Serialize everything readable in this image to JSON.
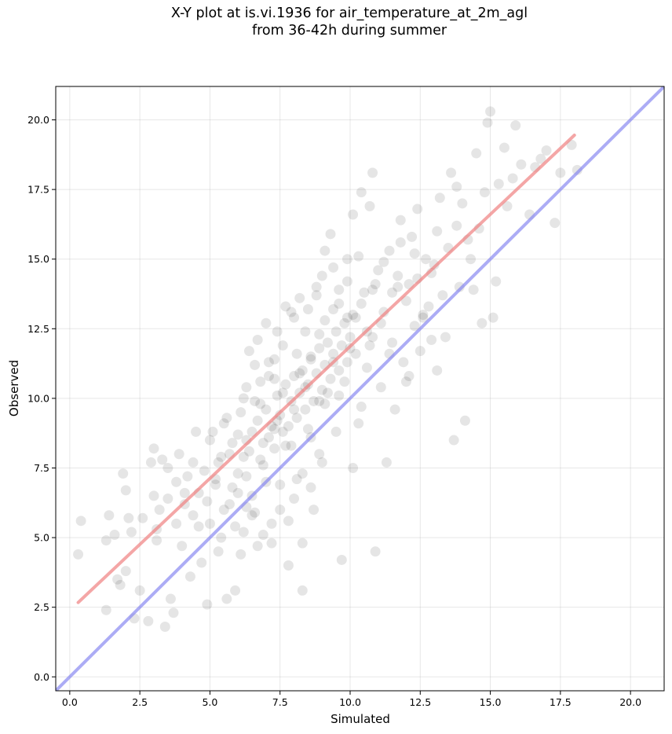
{
  "chart_data": {
    "type": "scatter",
    "title_line1": "X-Y plot at is.vi.1936 for air_temperature_at_2m_agl",
    "title_line2": "from 36-42h during summer",
    "xlabel": "Simulated",
    "ylabel": "Observed",
    "xlim": [
      -0.5,
      21.2
    ],
    "ylim": [
      -0.5,
      21.2
    ],
    "xticks": [
      0.0,
      2.5,
      5.0,
      7.5,
      10.0,
      12.5,
      15.0,
      17.5,
      20.0
    ],
    "yticks": [
      0.0,
      2.5,
      5.0,
      7.5,
      10.0,
      12.5,
      15.0,
      17.5,
      20.0
    ],
    "xtick_labels": [
      "0.0",
      "2.5",
      "5.0",
      "7.5",
      "10.0",
      "12.5",
      "15.0",
      "17.5",
      "20.0"
    ],
    "ytick_labels": [
      "0.0",
      "2.5",
      "5.0",
      "7.5",
      "10.0",
      "12.5",
      "15.0",
      "17.5",
      "20.0"
    ],
    "grid": true,
    "point_color": "#000000",
    "point_alpha": 0.1,
    "series": [
      {
        "name": "",
        "points": [
          [
            0.3,
            4.4
          ],
          [
            0.4,
            5.6
          ],
          [
            1.3,
            2.4
          ],
          [
            1.3,
            4.9
          ],
          [
            1.4,
            5.8
          ],
          [
            1.6,
            5.1
          ],
          [
            1.7,
            3.5
          ],
          [
            1.8,
            3.3
          ],
          [
            1.9,
            7.3
          ],
          [
            2.0,
            3.8
          ],
          [
            2.0,
            6.7
          ],
          [
            2.1,
            5.7
          ],
          [
            2.2,
            5.2
          ],
          [
            2.3,
            2.1
          ],
          [
            2.5,
            3.1
          ],
          [
            2.6,
            5.7
          ],
          [
            2.8,
            2.0
          ],
          [
            2.9,
            7.7
          ],
          [
            3.0,
            8.2
          ],
          [
            3.0,
            6.5
          ],
          [
            3.1,
            4.9
          ],
          [
            3.1,
            5.3
          ],
          [
            3.3,
            7.8
          ],
          [
            3.4,
            1.8
          ],
          [
            3.5,
            7.5
          ],
          [
            3.6,
            2.8
          ],
          [
            3.7,
            2.3
          ],
          [
            3.8,
            5.5
          ],
          [
            3.9,
            8.0
          ],
          [
            4.0,
            4.7
          ],
          [
            4.1,
            6.2
          ],
          [
            4.2,
            7.2
          ],
          [
            4.3,
            3.6
          ],
          [
            4.4,
            5.8
          ],
          [
            4.5,
            8.8
          ],
          [
            4.6,
            6.6
          ],
          [
            4.7,
            4.1
          ],
          [
            4.8,
            7.4
          ],
          [
            4.9,
            2.6
          ],
          [
            5.0,
            5.5
          ],
          [
            5.1,
            8.8
          ],
          [
            5.2,
            6.9
          ],
          [
            5.3,
            4.5
          ],
          [
            5.4,
            7.9
          ],
          [
            5.5,
            9.1
          ],
          [
            5.6,
            2.8
          ],
          [
            5.7,
            6.2
          ],
          [
            5.8,
            8.4
          ],
          [
            5.9,
            3.1
          ],
          [
            6.0,
            7.3
          ],
          [
            6.1,
            9.5
          ],
          [
            6.2,
            5.2
          ],
          [
            6.3,
            10.4
          ],
          [
            6.4,
            8.1
          ],
          [
            6.5,
            6.5
          ],
          [
            6.6,
            11.2
          ],
          [
            6.7,
            4.7
          ],
          [
            6.8,
            9.8
          ],
          [
            6.9,
            7.6
          ],
          [
            7.0,
            12.7
          ],
          [
            7.1,
            8.6
          ],
          [
            7.2,
            5.5
          ],
          [
            7.3,
            10.7
          ],
          [
            7.4,
            9.2
          ],
          [
            7.5,
            6.9
          ],
          [
            7.6,
            11.9
          ],
          [
            7.7,
            8.3
          ],
          [
            7.8,
            4.0
          ],
          [
            7.9,
            13.1
          ],
          [
            8.0,
            9.6
          ],
          [
            8.1,
            7.1
          ],
          [
            8.2,
            10.9
          ],
          [
            8.3,
            3.1
          ],
          [
            8.4,
            12.4
          ],
          [
            8.5,
            8.9
          ],
          [
            8.6,
            11.5
          ],
          [
            8.7,
            6.0
          ],
          [
            8.8,
            13.7
          ],
          [
            8.9,
            9.9
          ],
          [
            9.0,
            7.7
          ],
          [
            9.1,
            12.8
          ],
          [
            9.2,
            10.2
          ],
          [
            9.3,
            15.9
          ],
          [
            9.4,
            11.3
          ],
          [
            9.5,
            8.8
          ],
          [
            9.6,
            13.4
          ],
          [
            9.7,
            4.2
          ],
          [
            9.8,
            10.6
          ],
          [
            9.9,
            14.2
          ],
          [
            10.0,
            11.8
          ],
          [
            10.1,
            7.5
          ],
          [
            10.2,
            12.9
          ],
          [
            10.3,
            15.1
          ],
          [
            10.4,
            9.7
          ],
          [
            10.5,
            13.8
          ],
          [
            10.6,
            11.1
          ],
          [
            10.7,
            16.9
          ],
          [
            10.8,
            12.2
          ],
          [
            10.9,
            4.5
          ],
          [
            11.0,
            14.6
          ],
          [
            11.1,
            10.4
          ],
          [
            11.2,
            13.1
          ],
          [
            11.3,
            7.7
          ],
          [
            11.4,
            15.3
          ],
          [
            11.5,
            12.0
          ],
          [
            11.6,
            9.6
          ],
          [
            11.7,
            14.0
          ],
          [
            11.8,
            16.4
          ],
          [
            11.9,
            11.3
          ],
          [
            12.0,
            13.5
          ],
          [
            12.1,
            10.8
          ],
          [
            12.2,
            15.8
          ],
          [
            12.3,
            12.6
          ],
          [
            12.4,
            14.3
          ],
          [
            12.5,
            11.7
          ],
          [
            12.6,
            13.0
          ],
          [
            12.7,
            15.0
          ],
          [
            12.9,
            12.1
          ],
          [
            13.0,
            14.8
          ],
          [
            13.1,
            11.0
          ],
          [
            13.2,
            17.2
          ],
          [
            13.3,
            13.7
          ],
          [
            13.5,
            15.4
          ],
          [
            13.6,
            18.1
          ],
          [
            13.7,
            8.5
          ],
          [
            13.8,
            16.2
          ],
          [
            13.9,
            14.0
          ],
          [
            14.0,
            17.0
          ],
          [
            14.1,
            9.2
          ],
          [
            14.2,
            15.7
          ],
          [
            14.4,
            13.9
          ],
          [
            14.5,
            18.8
          ],
          [
            14.6,
            16.1
          ],
          [
            14.7,
            12.7
          ],
          [
            14.8,
            17.4
          ],
          [
            14.9,
            19.9
          ],
          [
            15.0,
            20.3
          ],
          [
            15.1,
            12.9
          ],
          [
            15.2,
            14.2
          ],
          [
            15.3,
            17.7
          ],
          [
            15.5,
            19.0
          ],
          [
            15.6,
            16.9
          ],
          [
            15.8,
            17.9
          ],
          [
            15.9,
            19.8
          ],
          [
            16.1,
            18.4
          ],
          [
            16.4,
            16.6
          ],
          [
            16.6,
            18.3
          ],
          [
            16.8,
            18.6
          ],
          [
            17.0,
            18.9
          ],
          [
            17.3,
            16.3
          ],
          [
            17.5,
            18.1
          ],
          [
            17.9,
            19.1
          ],
          [
            18.1,
            18.2
          ],
          [
            5.3,
            7.7
          ],
          [
            5.8,
            6.8
          ],
          [
            6.2,
            7.9
          ],
          [
            6.5,
            8.8
          ],
          [
            6.7,
            9.2
          ],
          [
            6.9,
            8.4
          ],
          [
            7.0,
            9.6
          ],
          [
            7.2,
            9.0
          ],
          [
            7.3,
            8.2
          ],
          [
            7.4,
            10.1
          ],
          [
            7.5,
            9.4
          ],
          [
            7.6,
            8.8
          ],
          [
            7.7,
            10.5
          ],
          [
            7.8,
            9.0
          ],
          [
            7.9,
            9.9
          ],
          [
            8.0,
            10.8
          ],
          [
            8.1,
            9.3
          ],
          [
            8.2,
            10.2
          ],
          [
            8.3,
            11.0
          ],
          [
            8.4,
            9.6
          ],
          [
            8.5,
            10.5
          ],
          [
            8.6,
            11.4
          ],
          [
            8.7,
            9.9
          ],
          [
            8.8,
            10.9
          ],
          [
            8.9,
            11.8
          ],
          [
            9.0,
            10.3
          ],
          [
            9.1,
            11.2
          ],
          [
            9.2,
            12.0
          ],
          [
            9.3,
            10.7
          ],
          [
            9.4,
            11.6
          ],
          [
            9.5,
            12.4
          ],
          [
            9.6,
            11.0
          ],
          [
            9.7,
            11.9
          ],
          [
            9.8,
            12.7
          ],
          [
            9.9,
            11.3
          ],
          [
            10.0,
            12.2
          ],
          [
            10.1,
            13.0
          ],
          [
            6.0,
            8.7
          ],
          [
            6.3,
            7.2
          ],
          [
            6.6,
            9.9
          ],
          [
            6.8,
            7.8
          ],
          [
            7.1,
            10.8
          ],
          [
            7.3,
            8.9
          ],
          [
            7.6,
            10.2
          ],
          [
            7.9,
            8.3
          ],
          [
            8.1,
            11.6
          ],
          [
            8.4,
            10.4
          ],
          [
            8.6,
            8.6
          ],
          [
            8.9,
            12.3
          ],
          [
            9.1,
            9.8
          ],
          [
            9.4,
            13.2
          ],
          [
            9.6,
            10.1
          ],
          [
            9.9,
            12.9
          ],
          [
            10.2,
            11.6
          ],
          [
            10.4,
            13.4
          ],
          [
            10.7,
            11.9
          ],
          [
            10.9,
            14.1
          ],
          [
            4.9,
            6.3
          ],
          [
            5.2,
            7.1
          ],
          [
            5.5,
            6.0
          ],
          [
            5.7,
            8.0
          ],
          [
            6.0,
            6.6
          ],
          [
            6.3,
            8.5
          ],
          [
            6.5,
            5.8
          ],
          [
            6.8,
            10.6
          ],
          [
            7.0,
            7.0
          ],
          [
            7.3,
            11.4
          ],
          [
            3.2,
            6.0
          ],
          [
            3.5,
            6.4
          ],
          [
            3.8,
            7.0
          ],
          [
            4.1,
            6.6
          ],
          [
            4.4,
            7.7
          ],
          [
            4.6,
            5.4
          ],
          [
            5.0,
            8.5
          ],
          [
            5.4,
            5.0
          ],
          [
            5.6,
            9.3
          ],
          [
            6.2,
            10.0
          ],
          [
            11.2,
            14.9
          ],
          [
            11.5,
            13.8
          ],
          [
            11.8,
            15.6
          ],
          [
            12.1,
            14.1
          ],
          [
            12.4,
            16.8
          ],
          [
            12.8,
            13.3
          ],
          [
            13.1,
            16.0
          ],
          [
            13.4,
            12.2
          ],
          [
            13.8,
            17.6
          ],
          [
            14.3,
            15.0
          ],
          [
            10.3,
            9.1
          ],
          [
            10.6,
            12.4
          ],
          [
            10.8,
            13.9
          ],
          [
            11.1,
            12.7
          ],
          [
            11.4,
            11.6
          ],
          [
            11.7,
            14.4
          ],
          [
            12.0,
            10.6
          ],
          [
            12.3,
            15.2
          ],
          [
            12.6,
            12.9
          ],
          [
            12.9,
            14.5
          ],
          [
            8.3,
            7.3
          ],
          [
            8.6,
            6.8
          ],
          [
            8.9,
            8.0
          ],
          [
            9.1,
            15.3
          ],
          [
            9.4,
            14.7
          ],
          [
            9.6,
            13.9
          ],
          [
            9.9,
            15.0
          ],
          [
            10.1,
            16.6
          ],
          [
            10.4,
            17.4
          ],
          [
            10.8,
            18.1
          ],
          [
            6.4,
            11.7
          ],
          [
            6.7,
            12.1
          ],
          [
            7.1,
            11.3
          ],
          [
            7.4,
            12.4
          ],
          [
            7.7,
            13.3
          ],
          [
            8.0,
            12.9
          ],
          [
            8.2,
            13.6
          ],
          [
            8.5,
            13.2
          ],
          [
            8.8,
            14.0
          ],
          [
            9.0,
            14.4
          ],
          [
            7.5,
            6.0
          ],
          [
            7.8,
            5.6
          ],
          [
            8.0,
            6.4
          ],
          [
            8.3,
            4.8
          ],
          [
            7.2,
            4.8
          ],
          [
            6.9,
            5.1
          ],
          [
            6.6,
            5.9
          ],
          [
            6.3,
            6.1
          ],
          [
            6.1,
            4.4
          ],
          [
            5.9,
            5.4
          ]
        ]
      }
    ],
    "fit_line": {
      "color": "#f08080",
      "x": [
        0.3,
        18.0
      ],
      "y": [
        2.67,
        19.45
      ]
    },
    "identity_line": {
      "color": "#8080f0",
      "x": [
        -0.5,
        21.2
      ],
      "y": [
        -0.5,
        21.2
      ]
    }
  }
}
